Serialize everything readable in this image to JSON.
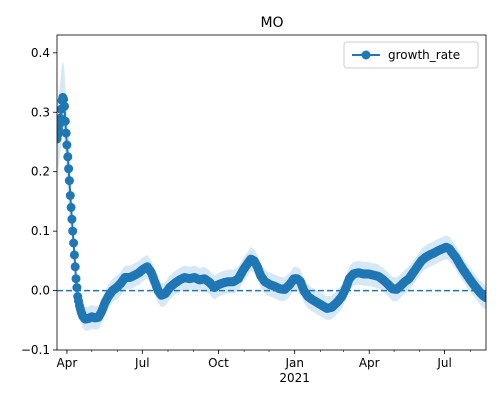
{
  "chart_data": {
    "type": "line",
    "title": "MO",
    "xlabel": "",
    "ylabel": "",
    "legend": {
      "placement": "top-right"
    },
    "grid": false,
    "colors": {
      "line": "#1f77b4",
      "band": "#d6e8f5",
      "baseline": "#1f77b4"
    },
    "xlim": [
      "2020-03-20",
      "2021-08-20"
    ],
    "ylim": [
      -0.1,
      0.43
    ],
    "x_ticks": [
      {
        "x": "2020-04-01",
        "label": "Apr"
      },
      {
        "x": "2020-07-01",
        "label": "Jul"
      },
      {
        "x": "2020-10-01",
        "label": "Oct"
      },
      {
        "x": "2021-01-01",
        "label": "Jan"
      },
      {
        "x": "2021-04-01",
        "label": "Apr"
      },
      {
        "x": "2021-07-01",
        "label": "Jul"
      }
    ],
    "x_year_label": {
      "x": "2021-01-01",
      "label": "2021"
    },
    "y_ticks": [
      -0.1,
      0.0,
      0.1,
      0.2,
      0.3,
      0.4
    ],
    "y_tick_labels": [
      "−0.1",
      "0.0",
      "0.1",
      "0.2",
      "0.3",
      "0.4"
    ],
    "reference_line": {
      "y": 0.0,
      "style": "dashed"
    },
    "series": [
      {
        "name": "growth_rate",
        "band_width": 0.02,
        "points": [
          [
            "2020-03-20",
            0.255
          ],
          [
            "2020-03-22",
            0.27
          ],
          [
            "2020-03-24",
            0.29
          ],
          [
            "2020-03-25",
            0.305
          ],
          [
            "2020-03-26",
            0.32
          ],
          [
            "2020-03-27",
            0.325
          ],
          [
            "2020-03-28",
            0.322
          ],
          [
            "2020-03-29",
            0.31
          ],
          [
            "2020-03-30",
            0.285
          ],
          [
            "2020-03-31",
            0.265
          ],
          [
            "2020-04-01",
            0.245
          ],
          [
            "2020-04-02",
            0.225
          ],
          [
            "2020-04-03",
            0.205
          ],
          [
            "2020-04-04",
            0.185
          ],
          [
            "2020-04-05",
            0.16
          ],
          [
            "2020-04-06",
            0.14
          ],
          [
            "2020-04-07",
            0.12
          ],
          [
            "2020-04-08",
            0.1
          ],
          [
            "2020-04-09",
            0.08
          ],
          [
            "2020-04-10",
            0.06
          ],
          [
            "2020-04-11",
            0.04
          ],
          [
            "2020-04-12",
            0.02
          ],
          [
            "2020-04-13",
            0.005
          ],
          [
            "2020-04-14",
            -0.01
          ],
          [
            "2020-04-16",
            -0.025
          ],
          [
            "2020-04-18",
            -0.035
          ],
          [
            "2020-04-20",
            -0.043
          ],
          [
            "2020-04-23",
            -0.048
          ],
          [
            "2020-04-27",
            -0.047
          ],
          [
            "2020-05-01",
            -0.044
          ],
          [
            "2020-05-05",
            -0.046
          ],
          [
            "2020-05-09",
            -0.045
          ],
          [
            "2020-05-13",
            -0.035
          ],
          [
            "2020-05-17",
            -0.02
          ],
          [
            "2020-05-21",
            -0.01
          ],
          [
            "2020-05-26",
            0.0
          ],
          [
            "2020-05-31",
            0.005
          ],
          [
            "2020-06-05",
            0.012
          ],
          [
            "2020-06-10",
            0.022
          ],
          [
            "2020-06-16",
            0.022
          ],
          [
            "2020-06-22",
            0.026
          ],
          [
            "2020-06-27",
            0.03
          ],
          [
            "2020-07-02",
            0.036
          ],
          [
            "2020-07-07",
            0.04
          ],
          [
            "2020-07-12",
            0.03
          ],
          [
            "2020-07-16",
            0.015
          ],
          [
            "2020-07-20",
            0.0
          ],
          [
            "2020-07-24",
            -0.008
          ],
          [
            "2020-07-29",
            -0.005
          ],
          [
            "2020-08-03",
            0.005
          ],
          [
            "2020-08-09",
            0.012
          ],
          [
            "2020-08-15",
            0.018
          ],
          [
            "2020-08-21",
            0.022
          ],
          [
            "2020-08-27",
            0.02
          ],
          [
            "2020-09-02",
            0.022
          ],
          [
            "2020-09-08",
            0.018
          ],
          [
            "2020-09-14",
            0.02
          ],
          [
            "2020-09-20",
            0.014
          ],
          [
            "2020-09-26",
            0.005
          ],
          [
            "2020-10-01",
            0.01
          ],
          [
            "2020-10-07",
            0.013
          ],
          [
            "2020-10-13",
            0.015
          ],
          [
            "2020-10-19",
            0.015
          ],
          [
            "2020-10-25",
            0.02
          ],
          [
            "2020-10-31",
            0.035
          ],
          [
            "2020-11-05",
            0.045
          ],
          [
            "2020-11-09",
            0.053
          ],
          [
            "2020-11-13",
            0.05
          ],
          [
            "2020-11-17",
            0.04
          ],
          [
            "2020-11-21",
            0.025
          ],
          [
            "2020-11-26",
            0.015
          ],
          [
            "2020-12-02",
            0.01
          ],
          [
            "2020-12-08",
            0.007
          ],
          [
            "2020-12-14",
            0.003
          ],
          [
            "2020-12-20",
            0.002
          ],
          [
            "2020-12-26",
            0.01
          ],
          [
            "2020-12-31",
            0.02
          ],
          [
            "2021-01-04",
            0.02
          ],
          [
            "2021-01-08",
            0.015
          ],
          [
            "2021-01-12",
            0.0
          ],
          [
            "2021-01-17",
            -0.01
          ],
          [
            "2021-01-22",
            -0.015
          ],
          [
            "2021-01-28",
            -0.02
          ],
          [
            "2021-02-03",
            -0.025
          ],
          [
            "2021-02-09",
            -0.03
          ],
          [
            "2021-02-15",
            -0.028
          ],
          [
            "2021-02-21",
            -0.02
          ],
          [
            "2021-02-27",
            -0.01
          ],
          [
            "2021-03-04",
            0.005
          ],
          [
            "2021-03-08",
            0.02
          ],
          [
            "2021-03-13",
            0.028
          ],
          [
            "2021-03-19",
            0.03
          ],
          [
            "2021-03-25",
            0.028
          ],
          [
            "2021-03-31",
            0.028
          ],
          [
            "2021-04-06",
            0.026
          ],
          [
            "2021-04-12",
            0.024
          ],
          [
            "2021-04-18",
            0.018
          ],
          [
            "2021-04-24",
            0.01
          ],
          [
            "2021-04-29",
            0.003
          ],
          [
            "2021-05-04",
            0.002
          ],
          [
            "2021-05-09",
            0.008
          ],
          [
            "2021-05-14",
            0.015
          ],
          [
            "2021-05-19",
            0.02
          ],
          [
            "2021-05-24",
            0.03
          ],
          [
            "2021-05-29",
            0.04
          ],
          [
            "2021-06-03",
            0.05
          ],
          [
            "2021-06-08",
            0.056
          ],
          [
            "2021-06-13",
            0.06
          ],
          [
            "2021-06-18",
            0.063
          ],
          [
            "2021-06-23",
            0.067
          ],
          [
            "2021-06-28",
            0.07
          ],
          [
            "2021-07-03",
            0.073
          ],
          [
            "2021-07-07",
            0.07
          ],
          [
            "2021-07-11",
            0.062
          ],
          [
            "2021-07-15",
            0.055
          ],
          [
            "2021-07-19",
            0.045
          ],
          [
            "2021-07-23",
            0.036
          ],
          [
            "2021-07-27",
            0.028
          ],
          [
            "2021-07-31",
            0.02
          ],
          [
            "2021-08-04",
            0.012
          ],
          [
            "2021-08-08",
            0.005
          ],
          [
            "2021-08-12",
            -0.002
          ],
          [
            "2021-08-16",
            -0.008
          ],
          [
            "2021-08-20",
            -0.012
          ]
        ]
      }
    ]
  }
}
